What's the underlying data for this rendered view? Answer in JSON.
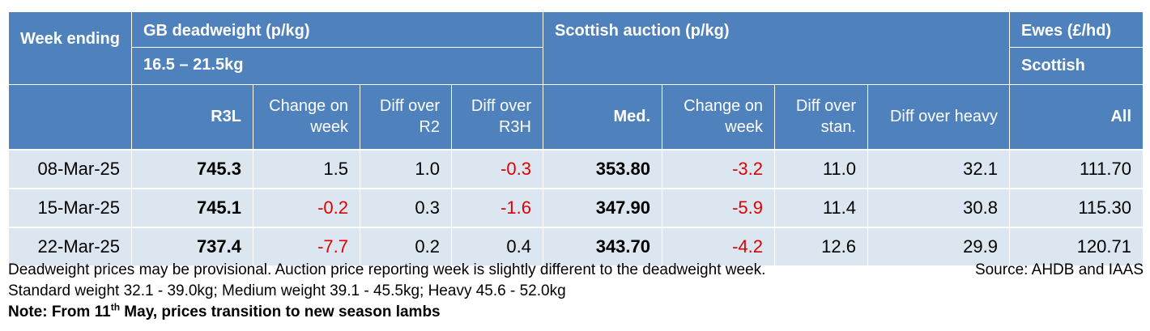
{
  "header": {
    "week_ending": "Week ending",
    "gb_title": "GB deadweight (p/kg)",
    "gb_range": "16.5 – 21.5kg",
    "scot_title": "Scottish auction (p/kg)",
    "ewes_title": "Ewes (£/hd)",
    "ewes_sub": "Scottish",
    "cols": {
      "r3l": "R3L",
      "gb_change": "Change on week",
      "diff_r2": "Diff over R2",
      "diff_r3h": "Diff over R3H",
      "med": "Med.",
      "scot_change": "Change on week",
      "diff_stan": "Diff over stan.",
      "diff_heavy": "Diff over heavy",
      "all": "All"
    }
  },
  "rows": [
    {
      "date": "08-Mar-25",
      "r3l": "745.3",
      "gb_change": "1.5",
      "diff_r2": "1.0",
      "diff_r3h": "-0.3",
      "med": "353.80",
      "scot_change": "-3.2",
      "diff_stan": "11.0",
      "diff_heavy": "32.1",
      "all": "111.70"
    },
    {
      "date": "15-Mar-25",
      "r3l": "745.1",
      "gb_change": "-0.2",
      "diff_r2": "0.3",
      "diff_r3h": "-1.6",
      "med": "347.90",
      "scot_change": "-5.9",
      "diff_stan": "11.4",
      "diff_heavy": "30.8",
      "all": "115.30"
    },
    {
      "date": "22-Mar-25",
      "r3l": "737.4",
      "gb_change": "-7.7",
      "diff_r2": "0.2",
      "diff_r3h": "0.4",
      "med": "343.70",
      "scot_change": "-4.2",
      "diff_stan": "12.6",
      "diff_heavy": "29.9",
      "all": "120.71"
    }
  ],
  "notes": {
    "line1_left": "Deadweight prices may be provisional.  Auction price reporting week is slightly different to the deadweight week.",
    "line1_right": "Source: AHDB and IAAS",
    "line2": "Standard weight 32.1 - 39.0kg; Medium weight 39.1 - 45.5kg; Heavy 45.6 - 52.0kg",
    "line3_prefix": "Note: From 11",
    "line3_sup": "th",
    "line3_suffix": " May, prices transition to new season lambs"
  },
  "colors": {
    "header_bg": "#4f81bd",
    "row_bg": "#dce6f1",
    "negative": "#e00000"
  }
}
